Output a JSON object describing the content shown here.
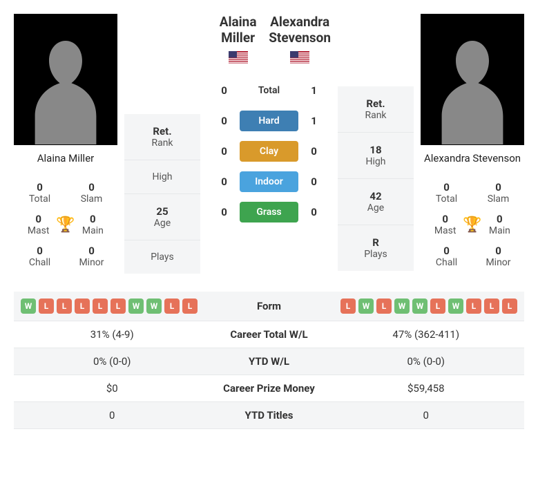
{
  "p1": {
    "name": "Alaina Miller",
    "name_under": "Alaina Miller",
    "flag_colors": {
      "stripes": [
        "#b22234",
        "#ffffff"
      ],
      "canton": "#3c3b6e"
    },
    "titles": {
      "total": "0",
      "slam": "0",
      "mast": "0",
      "main": "0",
      "chall": "0",
      "minor": "0"
    },
    "labels": {
      "total": "Total",
      "slam": "Slam",
      "mast": "Mast",
      "main": "Main",
      "chall": "Chall",
      "minor": "Minor"
    },
    "info": {
      "rank_val": "Ret.",
      "rank_lbl": "Rank",
      "high_val": "",
      "high_lbl": "High",
      "age_val": "25",
      "age_lbl": "Age",
      "plays_val": "",
      "plays_lbl": "Plays"
    }
  },
  "p2": {
    "name": "Alexandra Stevenson",
    "name_under": "Alexandra Stevenson",
    "flag_colors": {
      "stripes": [
        "#b22234",
        "#ffffff"
      ],
      "canton": "#3c3b6e"
    },
    "titles": {
      "total": "0",
      "slam": "0",
      "mast": "0",
      "main": "0",
      "chall": "0",
      "minor": "0"
    },
    "labels": {
      "total": "Total",
      "slam": "Slam",
      "mast": "Mast",
      "main": "Main",
      "chall": "Chall",
      "minor": "Minor"
    },
    "info": {
      "rank_val": "Ret.",
      "rank_lbl": "Rank",
      "high_val": "18",
      "high_lbl": "High",
      "age_val": "42",
      "age_lbl": "Age",
      "plays_val": "R",
      "plays_lbl": "Plays"
    }
  },
  "h2h": {
    "rows": [
      {
        "l": "0",
        "label": "Total",
        "r": "1",
        "color": ""
      },
      {
        "l": "0",
        "label": "Hard",
        "r": "1",
        "color": "#3e7fb3"
      },
      {
        "l": "0",
        "label": "Clay",
        "r": "0",
        "color": "#d99a2b"
      },
      {
        "l": "0",
        "label": "Indoor",
        "r": "0",
        "color": "#4aa3de"
      },
      {
        "l": "0",
        "label": "Grass",
        "r": "0",
        "color": "#3ea44f"
      }
    ]
  },
  "form": {
    "label": "Form",
    "p1": [
      "W",
      "L",
      "L",
      "L",
      "L",
      "L",
      "W",
      "W",
      "L",
      "L"
    ],
    "p2": [
      "L",
      "W",
      "L",
      "W",
      "W",
      "L",
      "W",
      "L",
      "L",
      "L"
    ]
  },
  "table": [
    {
      "l": "31% (4-9)",
      "c": "Career Total W/L",
      "r": "47% (362-411)"
    },
    {
      "l": "0% (0-0)",
      "c": "YTD W/L",
      "r": "0% (0-0)"
    },
    {
      "l": "$0",
      "c": "Career Prize Money",
      "r": "$59,458"
    },
    {
      "l": "0",
      "c": "YTD Titles",
      "r": "0"
    }
  ]
}
